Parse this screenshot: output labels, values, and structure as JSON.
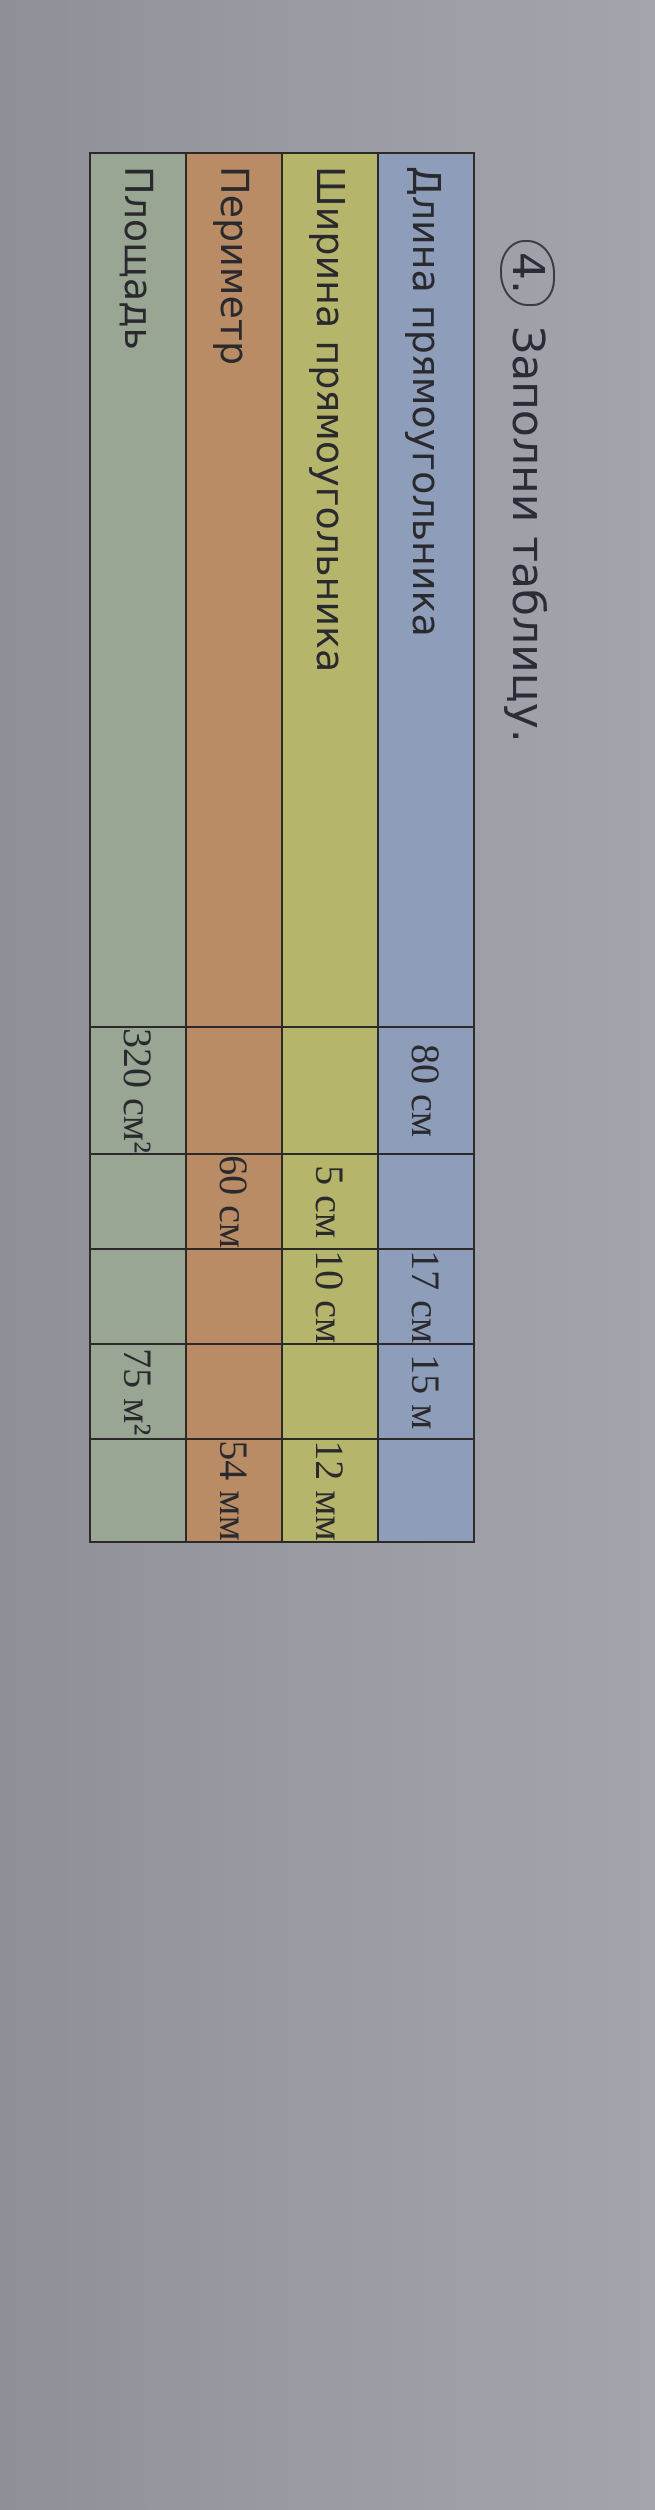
{
  "task": {
    "number": "4.",
    "title": "Заполни таблицу."
  },
  "table": {
    "rows": [
      {
        "label": "Длина прямоугольника",
        "cells": [
          "80 см",
          "",
          "17 см",
          "15 м",
          ""
        ]
      },
      {
        "label": "Ширина прямоугольника",
        "cells": [
          "",
          "5 см",
          "10 см",
          "",
          "12 мм"
        ]
      },
      {
        "label": "Периметр",
        "cells": [
          "",
          "60 см",
          "",
          "",
          "54 мм"
        ]
      },
      {
        "label": "Площадь",
        "cells": [
          "320 см²",
          "",
          "",
          "75 м²",
          ""
        ]
      }
    ],
    "row_colors": [
      "#8e9dba",
      "#b5b56c",
      "#b98c66",
      "#98a693"
    ]
  }
}
